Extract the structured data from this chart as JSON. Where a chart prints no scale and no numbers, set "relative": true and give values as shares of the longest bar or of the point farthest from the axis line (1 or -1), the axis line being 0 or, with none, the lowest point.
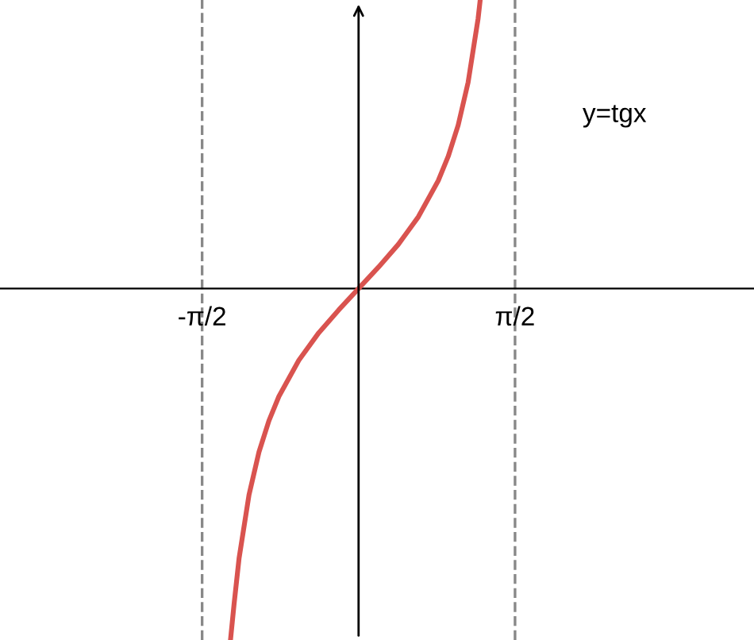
{
  "chart_data": {
    "type": "line",
    "relative": true,
    "x": [
      -1.286,
      -1.25,
      -1.2,
      -1.1,
      -1.0,
      -0.9,
      -0.8,
      -0.6,
      -0.4,
      -0.2,
      0,
      0.2,
      0.4,
      0.6,
      0.8,
      0.9,
      1.0,
      1.1,
      1.2,
      1.221
    ],
    "series": [
      {
        "color": "#d9534f",
        "values": [
          -1.0,
          -0.898,
          -0.768,
          -0.587,
          -0.465,
          -0.376,
          -0.307,
          -0.204,
          -0.126,
          -0.061,
          0,
          0.061,
          0.126,
          0.204,
          0.307,
          0.376,
          0.465,
          0.587,
          0.768,
          0.821
        ]
      }
    ],
    "xlim": [
      -3.6,
      3.97
    ],
    "xticks": [
      {
        "value": -1.5708,
        "label": "-π/2"
      },
      {
        "value": 1.5708,
        "label": "π/2"
      }
    ],
    "ref_lines": [
      {
        "axis": "x",
        "value": -1.5708,
        "color": "#888888",
        "line_style": "dashed"
      },
      {
        "axis": "x",
        "value": 1.5708,
        "color": "#888888",
        "line_style": "dashed"
      }
    ],
    "annotations": [
      "y=tgx"
    ],
    "tick_labels": "x",
    "grid": false,
    "legend": false,
    "marker": "none",
    "line_style": "solid"
  }
}
